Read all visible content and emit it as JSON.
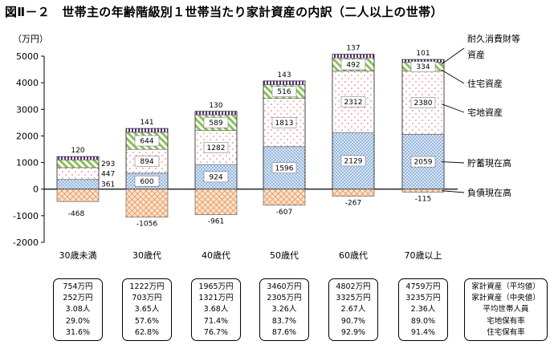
{
  "title": "図Ⅱ－２　世帯主の年齢階級別１世帯当たり家計資産の内訳（二人以上の世帯）",
  "chart_data": {
    "type": "bar",
    "stacked": true,
    "title": "図Ⅱ－２　世帯主の年齢階級別１世帯当たり家計資産の内訳（二人以上の世帯）",
    "ylabel": "（万円）",
    "ylim": [
      -2000,
      5000
    ],
    "yticks": [
      -2000,
      -1000,
      0,
      1000,
      2000,
      3000,
      4000,
      5000
    ],
    "categories": [
      "30歳未満",
      "30歳代",
      "40歳代",
      "50歳代",
      "60歳代",
      "70歳以上"
    ],
    "series": [
      {
        "name": "負債現在高",
        "values": [
          -468,
          -1056,
          -961,
          -607,
          -267,
          -115
        ],
        "color": "#f4b183",
        "pattern": "cross"
      },
      {
        "name": "貯蓄現在高",
        "values": [
          361,
          600,
          924,
          1596,
          2129,
          2059
        ],
        "color": "#5b9bd5",
        "pattern": "dots"
      },
      {
        "name": "宅地資産",
        "values": [
          447,
          894,
          1282,
          1813,
          2312,
          2380
        ],
        "color": "#e06666",
        "pattern": "sparse-dots"
      },
      {
        "name": "住宅資産",
        "values": [
          293,
          644,
          589,
          516,
          492,
          334
        ],
        "color": "#70ad47",
        "pattern": "diagonal"
      },
      {
        "name": "耐久消費財等資産",
        "values": [
          120,
          141,
          130,
          143,
          137,
          101
        ],
        "color": "#7030a0",
        "pattern": "vertical"
      }
    ],
    "legend_position": "right",
    "grid": false
  },
  "legend_labels": {
    "durable": [
      "耐久消費財等",
      "資産"
    ],
    "housing": "住宅資産",
    "land": "宅地資産",
    "savings": "貯蓄現在高",
    "debt": "負債現在高"
  },
  "summary": {
    "row_labels": [
      "家計資産（平均値）",
      "家計資産（中央値）",
      "平均世帯人員",
      "宅地保有率",
      "住宅保有率"
    ],
    "columns": [
      [
        "754万円",
        "252万円",
        "3.08人",
        "29.0%",
        "31.6%"
      ],
      [
        "1222万円",
        "703万円",
        "3.65人",
        "57.6%",
        "62.8%"
      ],
      [
        "1965万円",
        "1321万円",
        "3.68人",
        "71.4%",
        "76.7%"
      ],
      [
        "3460万円",
        "2305万円",
        "3.26人",
        "83.7%",
        "87.6%"
      ],
      [
        "4802万円",
        "3325万円",
        "2.67人",
        "90.7%",
        "92.9%"
      ],
      [
        "4759万円",
        "3235万円",
        "2.36人",
        "89.0%",
        "91.4%"
      ]
    ]
  }
}
